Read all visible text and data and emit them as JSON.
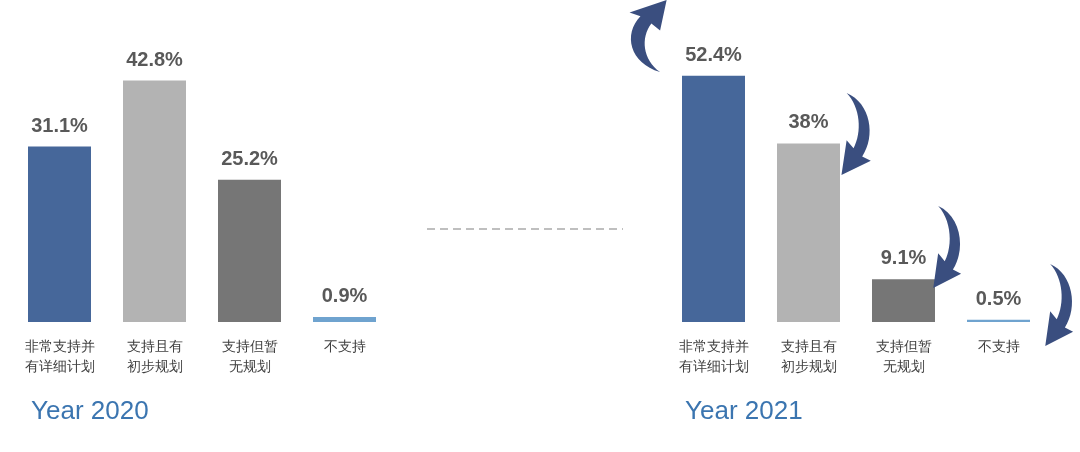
{
  "chart_data": [
    {
      "type": "bar",
      "title": "Year 2020",
      "categories": [
        "非常支持并有详细计划",
        "支持且有初步规划",
        "支持但暂无规划",
        "不支持"
      ],
      "values": [
        31.1,
        42.8,
        25.2,
        0.9
      ],
      "colors": [
        "#46679a",
        "#b3b3b3",
        "#767676",
        "#6fa3cf"
      ],
      "value_labels": [
        "31.1%",
        "42.8%",
        "25.2%",
        "0.9%"
      ]
    },
    {
      "type": "bar",
      "title": "Year 2021",
      "categories": [
        "非常支持并有详细计划",
        "支持且有初步规划",
        "支持但暂无规划",
        "不支持"
      ],
      "values": [
        52.4,
        38,
        9.1,
        0.5
      ],
      "colors": [
        "#46679a",
        "#b3b3b3",
        "#767676",
        "#6fa3cf"
      ],
      "value_labels": [
        "52.4%",
        "38%",
        "9.1%",
        "0.5%"
      ]
    }
  ]
}
